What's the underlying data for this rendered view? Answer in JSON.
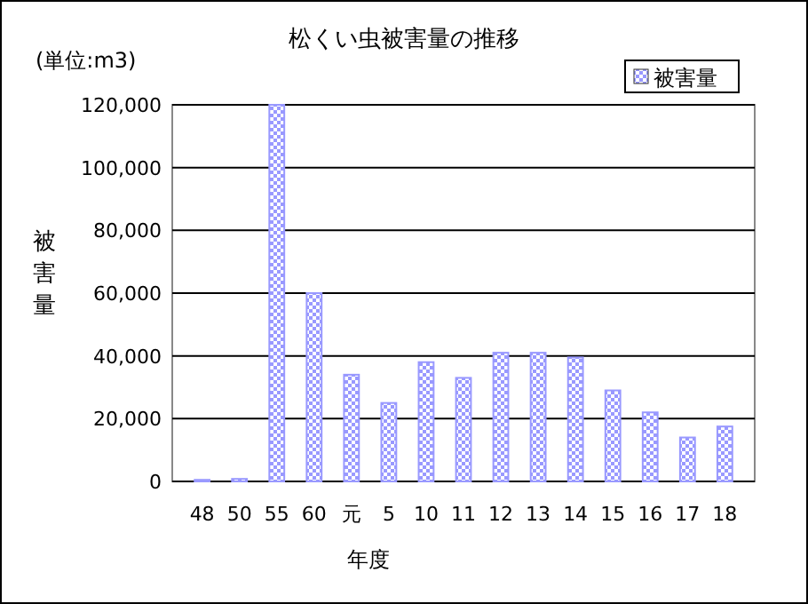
{
  "chart_data": {
    "type": "bar",
    "title": "松くい虫被害量の推移",
    "xlabel": "年度",
    "ylabel": "被害量",
    "annotations": [
      "(単位:m3)"
    ],
    "categories": [
      "48",
      "50",
      "55",
      "60",
      "元",
      "5",
      "10",
      "11",
      "12",
      "13",
      "14",
      "15",
      "16",
      "17",
      "18"
    ],
    "series": [
      {
        "name": "被害量",
        "color": "#9999ff",
        "values": [
          500,
          800,
          120000,
          60000,
          34000,
          25000,
          38000,
          33000,
          41000,
          41000,
          39500,
          29000,
          22000,
          14000,
          17500
        ]
      }
    ],
    "ylim": [
      0,
      120000
    ],
    "yticks": [
      {
        "value": 0,
        "label": "0"
      },
      {
        "value": 20000,
        "label": "20,000"
      },
      {
        "value": 40000,
        "label": "40,000"
      },
      {
        "value": 60000,
        "label": "60,000"
      },
      {
        "value": 80000,
        "label": "80,000"
      },
      {
        "value": 100000,
        "label": "100,000"
      },
      {
        "value": 120000,
        "label": "120,000"
      }
    ],
    "grid": "y",
    "legend": "top right"
  }
}
